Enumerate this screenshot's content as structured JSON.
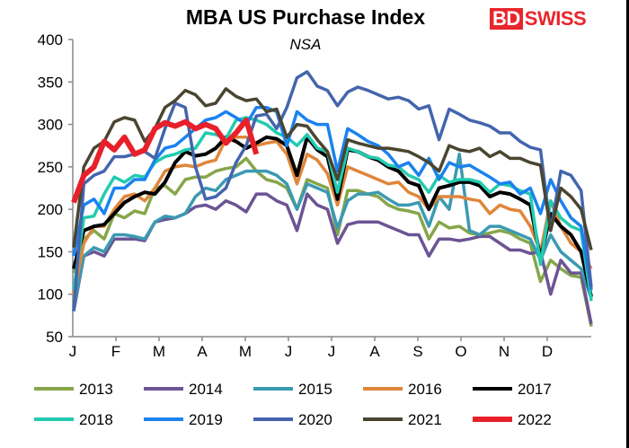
{
  "chart_data": {
    "type": "line",
    "title": "MBA US Purchase Index",
    "subtitle": "NSA",
    "xlabel": "",
    "ylabel": "",
    "ylim": [
      50,
      400
    ],
    "yticks": [
      50,
      100,
      150,
      200,
      250,
      300,
      350,
      400
    ],
    "x_unit": "week of year",
    "xlim": [
      1,
      52
    ],
    "month_ticks": [
      "J",
      "F",
      "M",
      "A",
      "M",
      "J",
      "J",
      "A",
      "S",
      "O",
      "N",
      "D"
    ],
    "grid": false,
    "legend": "bottom",
    "series": [
      {
        "name": "2013",
        "color": "#86a64a",
        "values": [
          125,
          165,
          175,
          165,
          195,
          190,
          198,
          195,
          225,
          228,
          218,
          235,
          238,
          238,
          245,
          248,
          250,
          260,
          245,
          235,
          232,
          225,
          200,
          235,
          230,
          225,
          170,
          222,
          222,
          218,
          215,
          205,
          200,
          198,
          195,
          165,
          185,
          178,
          180,
          172,
          170,
          172,
          175,
          172,
          165,
          160,
          115,
          140,
          130,
          122,
          120,
          62
        ]
      },
      {
        "name": "2014",
        "color": "#6c5494",
        "values": [
          80,
          145,
          150,
          145,
          165,
          165,
          165,
          163,
          185,
          188,
          190,
          195,
          203,
          205,
          200,
          210,
          205,
          197,
          218,
          218,
          210,
          205,
          175,
          218,
          205,
          200,
          160,
          182,
          185,
          185,
          185,
          180,
          175,
          170,
          170,
          145,
          165,
          165,
          163,
          165,
          168,
          168,
          160,
          152,
          152,
          148,
          150,
          100,
          140,
          125,
          125,
          65
        ]
      },
      {
        "name": "2015",
        "color": "#3b9ab2",
        "values": [
          85,
          145,
          155,
          150,
          170,
          170,
          168,
          165,
          185,
          192,
          190,
          195,
          215,
          225,
          222,
          235,
          240,
          245,
          245,
          245,
          240,
          230,
          200,
          230,
          225,
          220,
          178,
          210,
          218,
          218,
          220,
          212,
          205,
          205,
          208,
          180,
          215,
          200,
          265,
          175,
          170,
          180,
          180,
          175,
          170,
          165,
          140,
          170,
          150,
          140,
          130,
          95
        ]
      },
      {
        "name": "2016",
        "color": "#e0863a",
        "values": [
          100,
          160,
          180,
          180,
          200,
          215,
          218,
          210,
          225,
          245,
          250,
          252,
          250,
          255,
          258,
          283,
          285,
          285,
          275,
          278,
          280,
          265,
          230,
          265,
          258,
          242,
          205,
          250,
          245,
          240,
          235,
          230,
          232,
          220,
          215,
          200,
          215,
          215,
          215,
          212,
          210,
          195,
          205,
          200,
          198,
          180,
          150,
          210,
          180,
          160,
          150,
          130
        ]
      },
      {
        "name": "2017",
        "color": "#000000",
        "values": [
          130,
          175,
          180,
          182,
          195,
          208,
          215,
          220,
          218,
          232,
          255,
          268,
          263,
          265,
          272,
          285,
          280,
          272,
          278,
          285,
          283,
          275,
          240,
          285,
          270,
          262,
          212,
          270,
          268,
          262,
          258,
          250,
          245,
          232,
          228,
          200,
          225,
          228,
          232,
          232,
          228,
          215,
          220,
          218,
          212,
          205,
          142,
          195,
          180,
          170,
          150,
          97
        ]
      },
      {
        "name": "2018",
        "color": "#22cbb0",
        "values": [
          105,
          190,
          192,
          218,
          238,
          232,
          240,
          238,
          255,
          262,
          265,
          270,
          272,
          290,
          288,
          283,
          305,
          308,
          305,
          300,
          290,
          285,
          275,
          288,
          272,
          268,
          220,
          272,
          268,
          262,
          260,
          252,
          250,
          240,
          235,
          220,
          240,
          232,
          235,
          235,
          232,
          220,
          230,
          228,
          222,
          218,
          135,
          210,
          190,
          180,
          175,
          92
        ]
      },
      {
        "name": "2019",
        "color": "#1a82f0",
        "values": [
          145,
          205,
          212,
          195,
          225,
          225,
          235,
          235,
          258,
          272,
          275,
          285,
          295,
          305,
          308,
          315,
          308,
          300,
          320,
          320,
          315,
          275,
          315,
          305,
          300,
          300,
          245,
          295,
          288,
          280,
          275,
          265,
          250,
          255,
          240,
          260,
          235,
          255,
          250,
          252,
          245,
          238,
          230,
          232,
          218,
          225,
          195,
          235,
          210,
          190,
          180,
          105
        ]
      },
      {
        "name": "2020",
        "color": "#4465ad",
        "values": [
          80,
          230,
          240,
          245,
          262,
          262,
          265,
          268,
          260,
          295,
          325,
          320,
          250,
          212,
          215,
          225,
          255,
          275,
          310,
          312,
          295,
          320,
          355,
          362,
          345,
          340,
          322,
          338,
          344,
          340,
          335,
          330,
          332,
          328,
          318,
          322,
          282,
          318,
          312,
          305,
          302,
          298,
          290,
          290,
          280,
          273,
          270,
          175,
          245,
          240,
          222,
          108
        ]
      },
      {
        "name": "2021",
        "color": "#4a4530",
        "values": [
          155,
          250,
          272,
          280,
          303,
          308,
          305,
          280,
          295,
          320,
          328,
          340,
          335,
          322,
          325,
          342,
          333,
          328,
          330,
          315,
          318,
          285,
          300,
          298,
          282,
          268,
          235,
          282,
          278,
          275,
          272,
          272,
          270,
          268,
          262,
          255,
          245,
          275,
          270,
          268,
          272,
          262,
          268,
          260,
          260,
          255,
          252,
          175,
          225,
          215,
          200,
          152
        ]
      },
      {
        "name": "2022",
        "color": "#e8202a",
        "values": [
          208,
          240,
          250,
          280,
          270,
          285,
          265,
          270,
          295,
          302,
          298,
          303,
          295,
          300,
          295,
          278,
          290,
          305,
          265
        ]
      }
    ]
  },
  "logo": {
    "part1": "BD",
    "part2": "SWISS"
  }
}
